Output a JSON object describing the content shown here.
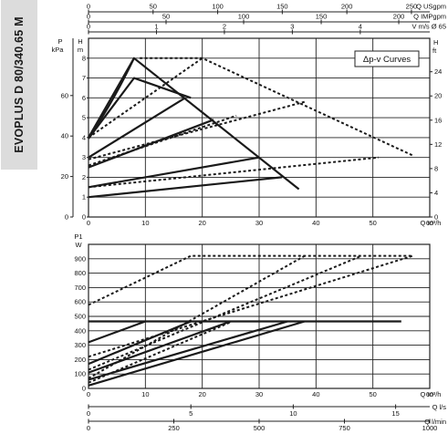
{
  "product_title": "EVOPLUS D 80/340.65 M",
  "colors": {
    "line": "#1a1a1a",
    "grid": "#222222",
    "sidebar_band": "#dcdcdc",
    "background": "#ffffff"
  },
  "chart_data": [
    {
      "type": "line",
      "panel": "head",
      "title": "",
      "legend": "Δp-v Curves",
      "legend_position": "top-right",
      "grid": true,
      "xlabel": "Q m³/h",
      "xlim": [
        0,
        60
      ],
      "x_ticks": [
        0,
        10,
        20,
        30,
        40,
        50,
        60
      ],
      "ylabel": "H m",
      "ylim": [
        0,
        9
      ],
      "y_ticks": [
        0,
        1,
        2,
        3,
        4,
        5,
        6,
        7,
        8
      ],
      "left_axis_kpa": {
        "label_p": "P",
        "label_unit": "kPa",
        "ticks": [
          0,
          20,
          40,
          60
        ]
      },
      "right_axis_ft": {
        "label_h": "H",
        "label_unit": "ft",
        "ticks": [
          0,
          4,
          8,
          12,
          16,
          20,
          24
        ]
      },
      "top_axes": [
        {
          "label": "Q USgpm",
          "ticks": [
            0,
            50,
            100,
            150,
            200,
            250
          ]
        },
        {
          "label": "Q IMPgpm",
          "ticks": [
            0,
            50,
            100,
            150,
            200
          ]
        },
        {
          "label": "V m/s Ø 65",
          "ticks": [
            0,
            1,
            2,
            3,
            4
          ]
        }
      ],
      "series": [
        {
          "style": "solid",
          "x": [
            0,
            8,
            37
          ],
          "y": [
            4,
            8,
            1.4
          ]
        },
        {
          "style": "solid",
          "x": [
            0,
            8,
            18
          ],
          "y": [
            3.95,
            7.0,
            6.0
          ]
        },
        {
          "style": "solid",
          "x": [
            0,
            17
          ],
          "y": [
            3.0,
            6.0
          ]
        },
        {
          "style": "solid",
          "x": [
            0,
            22
          ],
          "y": [
            2.5,
            4.9
          ]
        },
        {
          "style": "solid",
          "x": [
            0,
            30
          ],
          "y": [
            1.5,
            3.0
          ]
        },
        {
          "style": "solid",
          "x": [
            0,
            34
          ],
          "y": [
            1.0,
            2.0
          ]
        },
        {
          "style": "dotted",
          "x": [
            9,
            20,
            57
          ],
          "y": [
            8,
            8,
            3.1
          ]
        },
        {
          "style": "dotted",
          "x": [
            0,
            20
          ],
          "y": [
            4.0,
            8.0
          ]
        },
        {
          "style": "dotted",
          "x": [
            0,
            38
          ],
          "y": [
            2.9,
            5.8
          ]
        },
        {
          "style": "dotted",
          "x": [
            0,
            26
          ],
          "y": [
            2.6,
            5.1
          ]
        },
        {
          "style": "dotted",
          "x": [
            0,
            51
          ],
          "y": [
            1.5,
            3.0
          ]
        }
      ]
    },
    {
      "type": "line",
      "panel": "power",
      "title": "",
      "grid": true,
      "xlabel": "Q m³/h",
      "xlim": [
        0,
        60
      ],
      "x_ticks": [
        0,
        10,
        20,
        30,
        40,
        50,
        60
      ],
      "ylabel": "P1 W",
      "ylim": [
        0,
        1000
      ],
      "y_ticks": [
        0,
        100,
        200,
        300,
        400,
        500,
        600,
        700,
        800,
        900
      ],
      "bottom_axes": [
        {
          "label": "Q l/s",
          "ticks": [
            0,
            5,
            10,
            15
          ]
        },
        {
          "label": "Q l/min",
          "ticks": [
            0,
            250,
            500,
            750,
            1000
          ]
        }
      ],
      "series": [
        {
          "style": "solid",
          "x": [
            0,
            55
          ],
          "y": [
            465,
            465
          ]
        },
        {
          "style": "solid",
          "x": [
            0,
            10
          ],
          "y": [
            320,
            465
          ]
        },
        {
          "style": "solid",
          "x": [
            0,
            18
          ],
          "y": [
            170,
            465
          ]
        },
        {
          "style": "solid",
          "x": [
            0,
            25
          ],
          "y": [
            110,
            465
          ]
        },
        {
          "style": "solid",
          "x": [
            0,
            35
          ],
          "y": [
            60,
            465
          ]
        },
        {
          "style": "solid",
          "x": [
            0,
            38
          ],
          "y": [
            20,
            465
          ]
        },
        {
          "style": "dotted",
          "x": [
            0,
            18,
            57
          ],
          "y": [
            580,
            920,
            920
          ]
        },
        {
          "style": "dotted",
          "x": [
            0,
            57
          ],
          "y": [
            220,
            920
          ]
        },
        {
          "style": "dotted",
          "x": [
            0,
            48
          ],
          "y": [
            130,
            920
          ]
        },
        {
          "style": "dotted",
          "x": [
            0,
            38
          ],
          "y": [
            70,
            920
          ]
        },
        {
          "style": "dotted",
          "x": [
            0,
            25
          ],
          "y": [
            40,
            460
          ]
        }
      ]
    }
  ]
}
